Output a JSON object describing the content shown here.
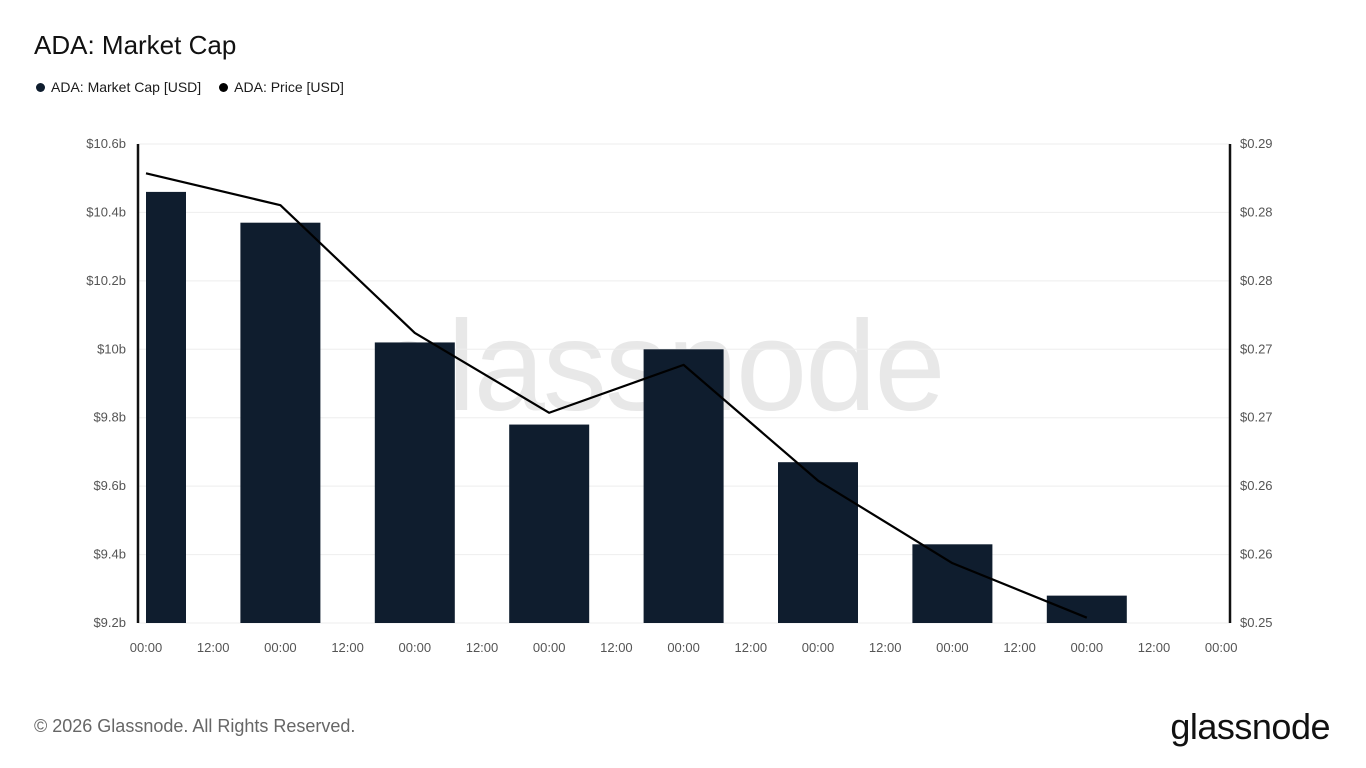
{
  "title": "ADA: Market Cap",
  "legend": [
    {
      "label": "ADA: Market Cap [USD]",
      "color": "#0f1d2e"
    },
    {
      "label": "ADA: Price [USD]",
      "color": "#000000"
    }
  ],
  "watermark": "glassnode",
  "footer": {
    "copyright": "© 2026 Glassnode. All Rights Reserved.",
    "brand": "glassnode"
  },
  "colors": {
    "bar": "#0f1d2e",
    "line": "#000000",
    "grid": "#eeeeee",
    "axis": "#111111"
  },
  "chart_data": {
    "type": "bar",
    "x_ticks": [
      "00:00",
      "12:00",
      "00:00",
      "12:00",
      "00:00",
      "12:00",
      "00:00",
      "12:00",
      "00:00",
      "12:00",
      "00:00",
      "12:00",
      "00:00",
      "12:00",
      "00:00",
      "12:00",
      "00:00"
    ],
    "y_left": {
      "ticks": [
        "$10.6b",
        "$10.4b",
        "$10.2b",
        "$10b",
        "$9.8b",
        "$9.6b",
        "$9.4b",
        "$9.2b"
      ],
      "ylim": [
        9.2,
        10.6
      ],
      "unit": "USD billions"
    },
    "y_right": {
      "ticks": [
        "$0.29",
        "$0.28",
        "$0.28",
        "$0.27",
        "$0.27",
        "$0.26",
        "$0.26",
        "$0.25"
      ],
      "ylim": [
        0.2525,
        0.2885
      ],
      "unit": "USD"
    },
    "series": [
      {
        "name": "ADA: Market Cap [USD]",
        "kind": "bar",
        "axis": "left",
        "x": [
          0,
          1,
          2,
          3,
          4,
          5,
          6,
          7
        ],
        "values": [
          10.46,
          10.37,
          10.02,
          9.78,
          10.0,
          9.67,
          9.43,
          9.28
        ]
      },
      {
        "name": "ADA: Price [USD]",
        "kind": "line",
        "axis": "right",
        "x": [
          0,
          1,
          2,
          3,
          4,
          5,
          6,
          7
        ],
        "values": [
          0.2863,
          0.2839,
          0.2743,
          0.2683,
          0.2719,
          0.2632,
          0.257,
          0.2529
        ]
      }
    ]
  }
}
